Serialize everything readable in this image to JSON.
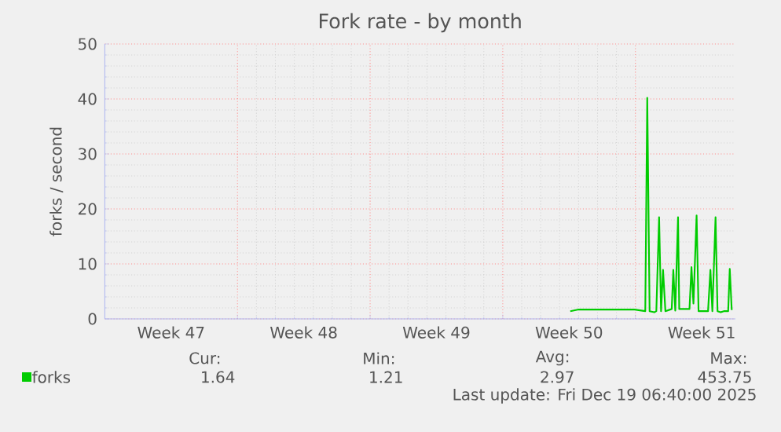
{
  "chart_data": {
    "type": "line",
    "title": "Fork rate - by month",
    "ylabel": "forks / second",
    "xlim": [
      "2025-11-16T00:00",
      "2025-12-19T06:40"
    ],
    "xticks": [
      {
        "value": "2025-11-19T12:00",
        "label": "Week 47"
      },
      {
        "value": "2025-11-23T00:00",
        "label": null
      },
      {
        "value": "2025-11-26T12:00",
        "label": "Week 48"
      },
      {
        "value": "2025-11-30T00:00",
        "label": null
      },
      {
        "value": "2025-12-03T12:00",
        "label": "Week 49"
      },
      {
        "value": "2025-12-07T00:00",
        "label": null
      },
      {
        "value": "2025-12-10T12:00",
        "label": "Week 50"
      },
      {
        "value": "2025-12-14T00:00",
        "label": null
      },
      {
        "value": "2025-12-17T12:00",
        "label": "Week 51"
      }
    ],
    "ylim": [
      0,
      50
    ],
    "yticks": [
      0,
      10,
      20,
      30,
      40,
      50
    ],
    "grid": true,
    "legend": "bottom left",
    "series": [
      {
        "name": "forks",
        "color": "#00cc00",
        "x": [
          "2025-12-10T13:30",
          "2025-12-11T00:00",
          "2025-12-13T00:00",
          "2025-12-13T23:00",
          "2025-12-14T12:30",
          "2025-12-14T15:00",
          "2025-12-14T18:00",
          "2025-12-15T00:00",
          "2025-12-15T02:30",
          "2025-12-15T06:00",
          "2025-12-15T08:30",
          "2025-12-15T11:00",
          "2025-12-15T14:00",
          "2025-12-15T22:00",
          "2025-12-16T00:00",
          "2025-12-16T02:30",
          "2025-12-16T06:00",
          "2025-12-16T07:30",
          "2025-12-16T20:30",
          "2025-12-16T23:00",
          "2025-12-17T01:30",
          "2025-12-17T05:30",
          "2025-12-17T08:00",
          "2025-12-17T20:00",
          "2025-12-17T23:00",
          "2025-12-18T01:30",
          "2025-12-18T05:30",
          "2025-12-18T08:00",
          "2025-12-18T12:00",
          "2025-12-18T16:00",
          "2025-12-18T21:30",
          "2025-12-18T23:30",
          "2025-12-19T02:00"
        ],
        "values": [
          1.4,
          1.7,
          1.7,
          1.7,
          1.4,
          40.2,
          1.4,
          1.2,
          1.4,
          18.5,
          1.4,
          8.9,
          1.4,
          1.8,
          8.9,
          1.5,
          18.5,
          1.8,
          1.8,
          9.4,
          2.8,
          18.8,
          1.4,
          1.4,
          8.9,
          1.4,
          18.5,
          1.4,
          1.2,
          1.4,
          1.4,
          9.1,
          1.6
        ]
      }
    ],
    "annotations": [
      "Cur:",
      "1.64",
      "Min:",
      "1.21",
      "Avg:",
      "2.97",
      "Max:",
      "453.75",
      "Last update: Fri Dec 19 06:40:00 2025"
    ]
  }
}
